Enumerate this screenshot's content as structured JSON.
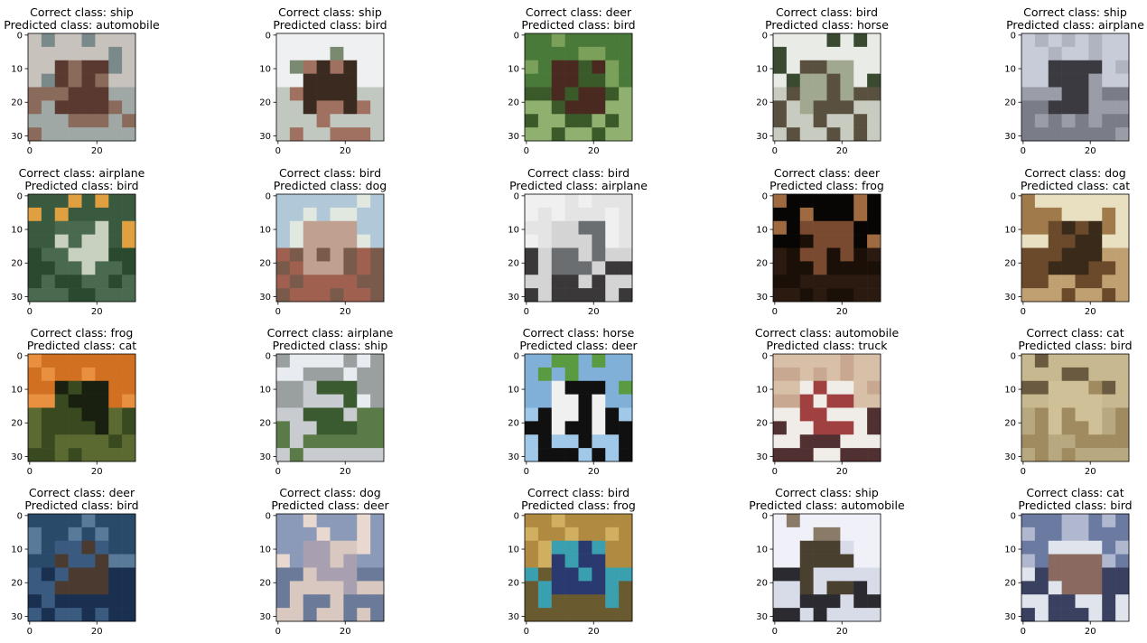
{
  "chart_data": [
    {
      "type": "image",
      "correct_label": "Correct class: ship",
      "predicted_label": "Predicted class: automobile",
      "x_ticks": [
        "0",
        "20"
      ],
      "y_ticks": [
        "0",
        "10",
        "20",
        "30"
      ],
      "palette": [
        "#c8c2bd",
        "#8a6a5a",
        "#5a3a30",
        "#7a8a8a",
        "#a0a8a5"
      ]
    },
    {
      "type": "image",
      "correct_label": "Correct class: ship",
      "predicted_label": "Predicted class: bird",
      "x_ticks": [
        "0",
        "20"
      ],
      "y_ticks": [
        "0",
        "10",
        "20",
        "30"
      ],
      "palette": [
        "#eef0f2",
        "#a07060",
        "#3a2a20",
        "#7a8a70",
        "#c0c8c0"
      ]
    },
    {
      "type": "image",
      "correct_label": "Correct class: deer",
      "predicted_label": "Predicted class: bird",
      "x_ticks": [
        "0",
        "20"
      ],
      "y_ticks": [
        "0",
        "10",
        "20",
        "30"
      ],
      "palette": [
        "#4a7a3a",
        "#3a5a2a",
        "#4a2a20",
        "#7aa05a",
        "#90b070"
      ]
    },
    {
      "type": "image",
      "correct_label": "Correct class: bird",
      "predicted_label": "Predicted class: horse",
      "x_ticks": [
        "0",
        "20"
      ],
      "y_ticks": [
        "0",
        "10",
        "20",
        "30"
      ],
      "palette": [
        "#e8ebe6",
        "#5a5040",
        "#a0a890",
        "#3a4a30",
        "#c8ccc0"
      ]
    },
    {
      "type": "image",
      "correct_label": "Correct class: ship",
      "predicted_label": "Predicted class: airplane",
      "x_ticks": [
        "0",
        "20"
      ],
      "y_ticks": [
        "0",
        "10",
        "20",
        "30"
      ],
      "palette": [
        "#c8ccd8",
        "#9a9ca8",
        "#3a3a40",
        "#b0b4c0",
        "#7a7c88"
      ]
    },
    {
      "type": "image",
      "correct_label": "Correct class: airplane",
      "predicted_label": "Predicted class: bird",
      "x_ticks": [
        "0",
        "20"
      ],
      "y_ticks": [
        "0",
        "10",
        "20",
        "30"
      ],
      "palette": [
        "#3a5a40",
        "#4a6a50",
        "#c8d0c0",
        "#e0a040",
        "#2a4a30"
      ]
    },
    {
      "type": "image",
      "correct_label": "Correct class: bird",
      "predicted_label": "Predicted class: dog",
      "x_ticks": [
        "0",
        "20"
      ],
      "y_ticks": [
        "0",
        "10",
        "20",
        "30"
      ],
      "palette": [
        "#b0c8d8",
        "#7a5a4a",
        "#c0a090",
        "#e0e8e0",
        "#a06050"
      ]
    },
    {
      "type": "image",
      "correct_label": "Correct class: bird",
      "predicted_label": "Predicted class: airplane",
      "x_ticks": [
        "0",
        "20"
      ],
      "y_ticks": [
        "0",
        "10",
        "20",
        "30"
      ],
      "palette": [
        "#e4e4e4",
        "#d4d4d4",
        "#6a6e70",
        "#f0f0f0",
        "#3a3838"
      ]
    },
    {
      "type": "image",
      "correct_label": "Correct class: deer",
      "predicted_label": "Predicted class: frog",
      "x_ticks": [
        "0",
        "20"
      ],
      "y_ticks": [
        "0",
        "10",
        "20",
        "30"
      ],
      "palette": [
        "#080604",
        "#1a1008",
        "#7a4a30",
        "#a06a40",
        "#2a1a10"
      ]
    },
    {
      "type": "image",
      "correct_label": "Correct class: dog",
      "predicted_label": "Predicted class: cat",
      "x_ticks": [
        "0",
        "20"
      ],
      "y_ticks": [
        "0",
        "10",
        "20",
        "30"
      ],
      "palette": [
        "#e8e0c0",
        "#6a4a2a",
        "#3a2a1a",
        "#a07a4a",
        "#c0a070"
      ]
    },
    {
      "type": "image",
      "correct_label": "Correct class: frog",
      "predicted_label": "Predicted class: cat",
      "x_ticks": [
        "0",
        "20"
      ],
      "y_ticks": [
        "0",
        "10",
        "20",
        "30"
      ],
      "palette": [
        "#d07020",
        "#3a4a20",
        "#1a2010",
        "#e89040",
        "#5a6a30"
      ]
    },
    {
      "type": "image",
      "correct_label": "Correct class: airplane",
      "predicted_label": "Predicted class: ship",
      "x_ticks": [
        "0",
        "20"
      ],
      "y_ticks": [
        "0",
        "10",
        "20",
        "30"
      ],
      "palette": [
        "#9aa0a0",
        "#c8ccd0",
        "#3a5a30",
        "#e8ecf0",
        "#5a7a48"
      ]
    },
    {
      "type": "image",
      "correct_label": "Correct class: horse",
      "predicted_label": "Predicted class: deer",
      "x_ticks": [
        "0",
        "20"
      ],
      "y_ticks": [
        "0",
        "10",
        "20",
        "30"
      ],
      "palette": [
        "#80b0d8",
        "#101010",
        "#f0f0f0",
        "#5a9a40",
        "#a0c8e8"
      ]
    },
    {
      "type": "image",
      "correct_label": "Correct class: automobile",
      "predicted_label": "Predicted class: truck",
      "x_ticks": [
        "0",
        "20"
      ],
      "y_ticks": [
        "0",
        "10",
        "20",
        "30"
      ],
      "palette": [
        "#d8c0a8",
        "#f0ece8",
        "#a04040",
        "#c8a890",
        "#503030"
      ]
    },
    {
      "type": "image",
      "correct_label": "Correct class: cat",
      "predicted_label": "Predicted class: bird",
      "x_ticks": [
        "0",
        "20"
      ],
      "y_ticks": [
        "0",
        "10",
        "20",
        "30"
      ],
      "palette": [
        "#c8b890",
        "#a08a60",
        "#d0c098",
        "#6a5a40",
        "#b8a880"
      ]
    },
    {
      "type": "image",
      "correct_label": "Correct class: deer",
      "predicted_label": "Predicted class: bird",
      "x_ticks": [
        "0",
        "20"
      ],
      "y_ticks": [
        "0",
        "10",
        "20",
        "30"
      ],
      "palette": [
        "#2a4a6a",
        "#3a5a80",
        "#4a3a30",
        "#5a7a9a",
        "#1a3050"
      ]
    },
    {
      "type": "image",
      "correct_label": "Correct class: dog",
      "predicted_label": "Predicted class: deer",
      "x_ticks": [
        "0",
        "20"
      ],
      "y_ticks": [
        "0",
        "10",
        "20",
        "30"
      ],
      "palette": [
        "#8a9ab8",
        "#d8c8c0",
        "#a8a0b0",
        "#e8d8d0",
        "#6a7a98"
      ]
    },
    {
      "type": "image",
      "correct_label": "Correct class: bird",
      "predicted_label": "Predicted class: frog",
      "x_ticks": [
        "0",
        "20"
      ],
      "y_ticks": [
        "0",
        "10",
        "20",
        "30"
      ],
      "palette": [
        "#b08a40",
        "#3aa0b0",
        "#2a3a70",
        "#d0b060",
        "#6a5a30"
      ]
    },
    {
      "type": "image",
      "correct_label": "Correct class: ship",
      "predicted_label": "Predicted class: automobile",
      "x_ticks": [
        "0",
        "20"
      ],
      "y_ticks": [
        "0",
        "10",
        "20",
        "30"
      ],
      "palette": [
        "#f0f0f8",
        "#d8dce8",
        "#4a4030",
        "#8a7a68",
        "#2a2a30"
      ]
    },
    {
      "type": "image",
      "correct_label": "Correct class: cat",
      "predicted_label": "Predicted class: bird",
      "x_ticks": [
        "0",
        "20"
      ],
      "y_ticks": [
        "0",
        "10",
        "20",
        "30"
      ],
      "palette": [
        "#6a7aa0",
        "#e0e4ec",
        "#8a6a60",
        "#b0b8d0",
        "#3a4060"
      ]
    }
  ]
}
